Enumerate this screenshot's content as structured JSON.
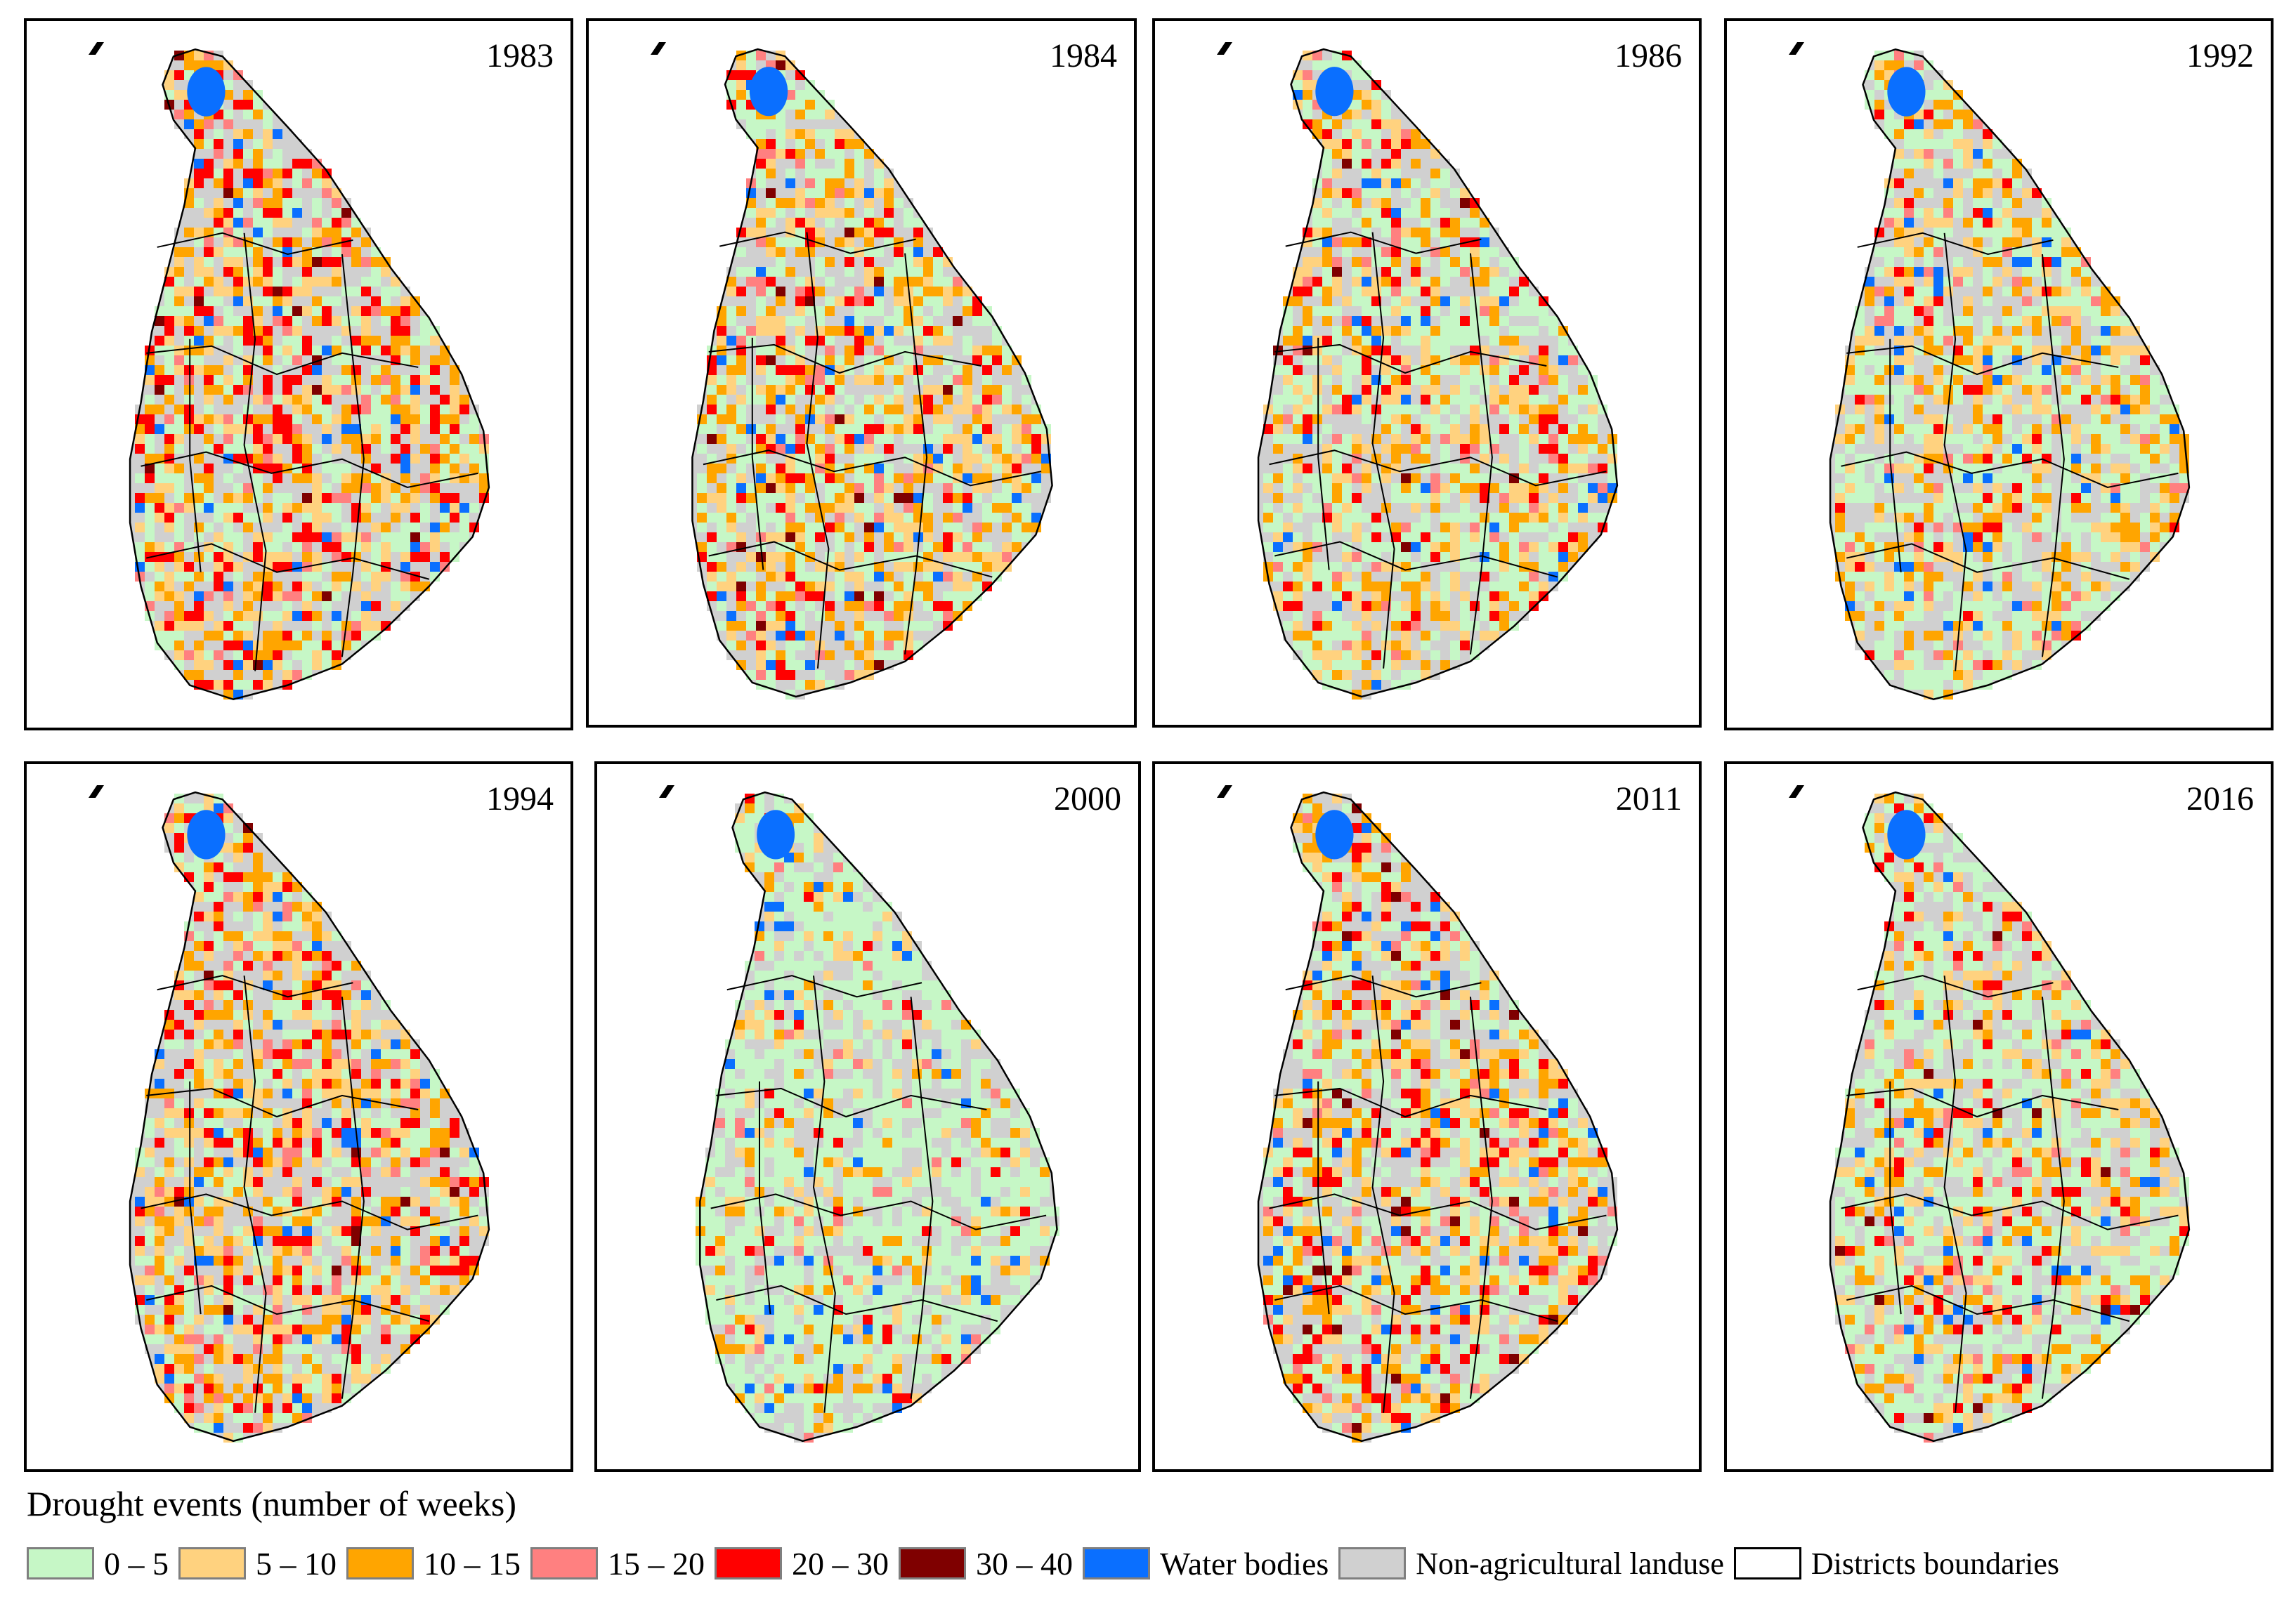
{
  "legend": {
    "title": "Drought events (number of weeks)",
    "items": [
      {
        "label": "0 – 5",
        "color": "#c6f7c6"
      },
      {
        "label": "5 – 10",
        "color": "#ffd27f"
      },
      {
        "label": "10 – 15",
        "color": "#ffa500"
      },
      {
        "label": "15 – 20",
        "color": "#ff8080"
      },
      {
        "label": "20 – 30",
        "color": "#ff0000"
      },
      {
        "label": "30 – 40",
        "color": "#7f0000"
      },
      {
        "label": "Water bodies",
        "color": "#0a6fff"
      },
      {
        "label": "Non-agricultural landuse",
        "color": "#d0d0d0"
      },
      {
        "label": "Districts boundaries",
        "color": "#ffffff"
      }
    ]
  },
  "maps": [
    {
      "year": "1983",
      "mix": [
        0.3,
        0.18,
        0.22,
        0.07,
        0.16,
        0.02
      ]
    },
    {
      "year": "1984",
      "mix": [
        0.4,
        0.2,
        0.22,
        0.06,
        0.1,
        0.02
      ]
    },
    {
      "year": "1986",
      "mix": [
        0.48,
        0.18,
        0.17,
        0.06,
        0.1,
        0.01
      ]
    },
    {
      "year": "1992",
      "mix": [
        0.5,
        0.2,
        0.2,
        0.05,
        0.05,
        0.0
      ]
    },
    {
      "year": "1994",
      "mix": [
        0.3,
        0.22,
        0.22,
        0.08,
        0.16,
        0.02
      ]
    },
    {
      "year": "2000",
      "mix": [
        0.72,
        0.12,
        0.1,
        0.03,
        0.03,
        0.0
      ]
    },
    {
      "year": "2011",
      "mix": [
        0.38,
        0.2,
        0.2,
        0.06,
        0.13,
        0.03
      ]
    },
    {
      "year": "2016",
      "mix": [
        0.55,
        0.17,
        0.15,
        0.05,
        0.07,
        0.01
      ]
    }
  ]
}
